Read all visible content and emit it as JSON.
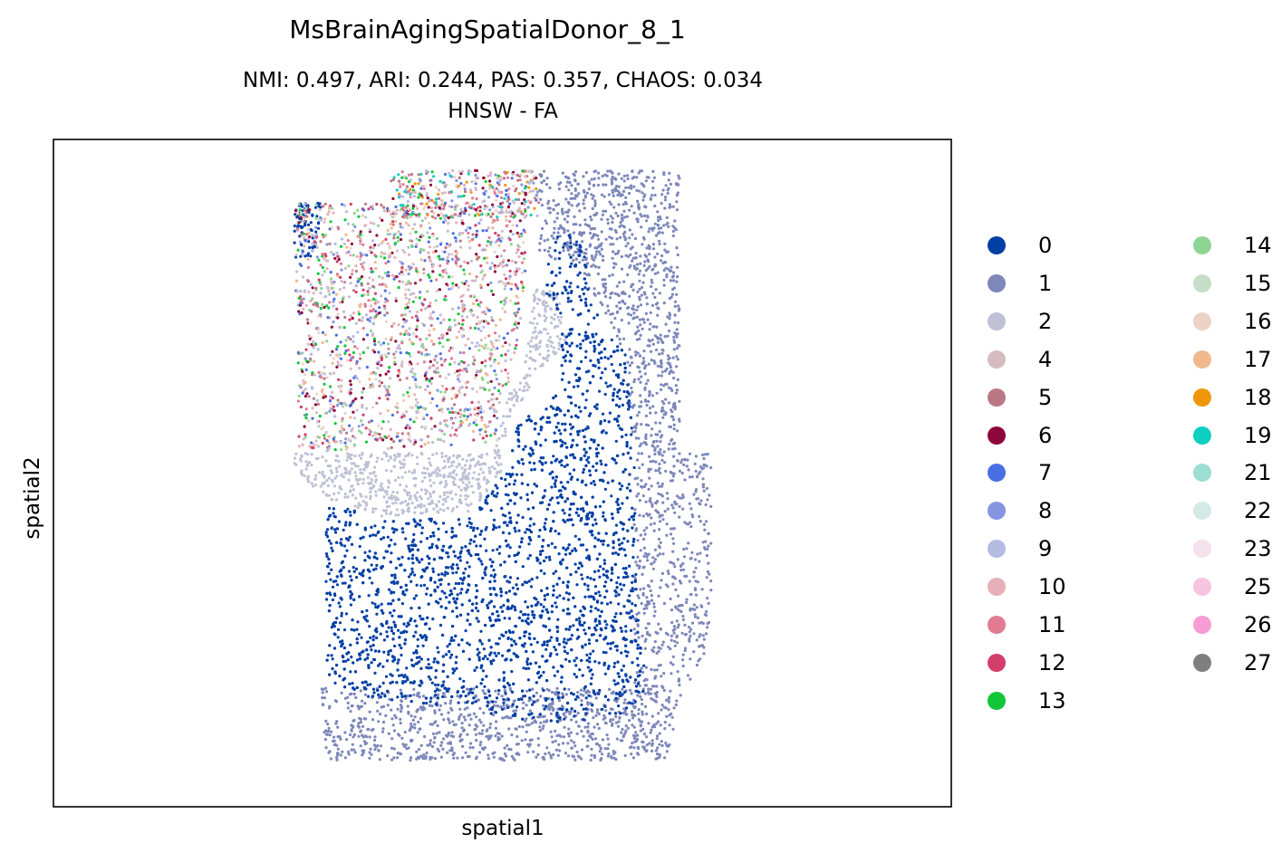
{
  "title": "MsBrainAgingSpatialDonor_8_1",
  "subtitle_metrics": "NMI: 0.497,  ARI: 0.244,  PAS: 0.357,  CHAOS: 0.034",
  "subtitle_method": "HNSW - FA",
  "chart_data": {
    "type": "scatter",
    "title": "MsBrainAgingSpatialDonor_8_1",
    "xlabel": "spatial1",
    "ylabel": "spatial2",
    "grid": false,
    "legend_position": "right-outside",
    "legend_columns": 2,
    "series": [
      {
        "name": "0",
        "color": "#023fa5"
      },
      {
        "name": "1",
        "color": "#7d87b9"
      },
      {
        "name": "2",
        "color": "#bec1d4"
      },
      {
        "name": "4",
        "color": "#d6bcc0"
      },
      {
        "name": "5",
        "color": "#bb7784"
      },
      {
        "name": "6",
        "color": "#8e063b"
      },
      {
        "name": "7",
        "color": "#4a6fe3"
      },
      {
        "name": "8",
        "color": "#8595e1"
      },
      {
        "name": "9",
        "color": "#b5bbe3"
      },
      {
        "name": "10",
        "color": "#e6afb9"
      },
      {
        "name": "11",
        "color": "#e07b91"
      },
      {
        "name": "12",
        "color": "#d33f6a"
      },
      {
        "name": "13",
        "color": "#11c638"
      },
      {
        "name": "14",
        "color": "#8dd593"
      },
      {
        "name": "15",
        "color": "#c6dec7"
      },
      {
        "name": "16",
        "color": "#ead3c6"
      },
      {
        "name": "17",
        "color": "#f0b98d"
      },
      {
        "name": "18",
        "color": "#ef9708"
      },
      {
        "name": "19",
        "color": "#0fcfc0"
      },
      {
        "name": "21",
        "color": "#9cded6"
      },
      {
        "name": "22",
        "color": "#d5eae7"
      },
      {
        "name": "23",
        "color": "#f3e1eb"
      },
      {
        "name": "25",
        "color": "#f6c4e1"
      },
      {
        "name": "26",
        "color": "#f79cd4"
      },
      {
        "name": "27",
        "color": "#7f7f7f"
      }
    ]
  }
}
